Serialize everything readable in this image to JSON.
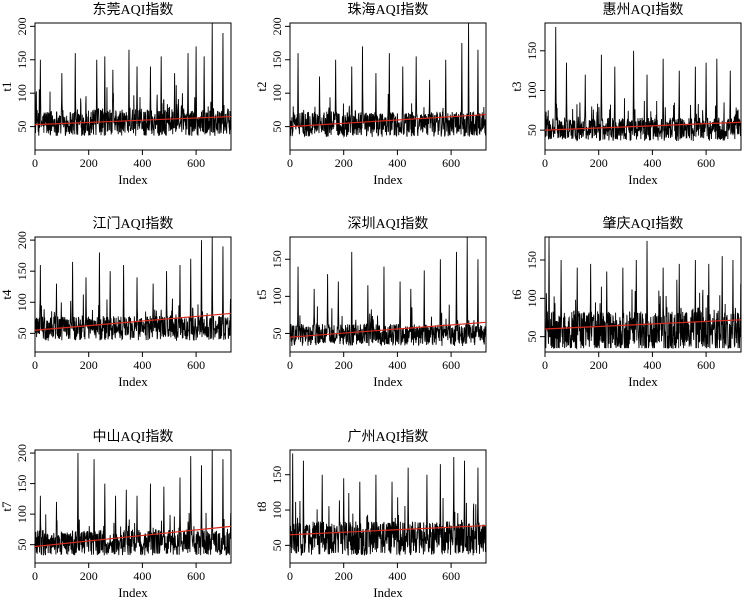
{
  "chart_data": [
    {
      "type": "line",
      "title": "东莞AQI指数",
      "xlabel": "Index",
      "ylabel": "t1",
      "xlim": [
        0,
        730
      ],
      "ylim": [
        15,
        205
      ],
      "xticks": [
        0,
        200,
        400,
        600
      ],
      "yticks": [
        50,
        100,
        150,
        200
      ],
      "series_style": {
        "color": "#000000"
      },
      "trend": {
        "color": "#d62b1f",
        "x": [
          0,
          730
        ],
        "y": [
          53,
          65
        ]
      },
      "profile": {
        "base": 48,
        "spread": 40,
        "peaks": [
          [
            20,
            150
          ],
          [
            100,
            130
          ],
          [
            150,
            160
          ],
          [
            230,
            150
          ],
          [
            260,
            155
          ],
          [
            290,
            135
          ],
          [
            350,
            165
          ],
          [
            380,
            140
          ],
          [
            430,
            140
          ],
          [
            470,
            155
          ],
          [
            520,
            130
          ],
          [
            570,
            160
          ],
          [
            600,
            170
          ],
          [
            630,
            155
          ],
          [
            660,
            205
          ],
          [
            700,
            190
          ]
        ]
      }
    },
    {
      "type": "line",
      "title": "珠海AQI指数",
      "xlabel": "Index",
      "ylabel": "t2",
      "xlim": [
        0,
        730
      ],
      "ylim": [
        15,
        205
      ],
      "xticks": [
        0,
        200,
        400,
        600
      ],
      "yticks": [
        50,
        100,
        150,
        200
      ],
      "series_style": {
        "color": "#000000"
      },
      "trend": {
        "color": "#d62b1f",
        "x": [
          0,
          730
        ],
        "y": [
          50,
          68
        ]
      },
      "profile": {
        "base": 46,
        "spread": 38,
        "peaks": [
          [
            30,
            160
          ],
          [
            110,
            125
          ],
          [
            170,
            150
          ],
          [
            230,
            140
          ],
          [
            270,
            170
          ],
          [
            320,
            130
          ],
          [
            370,
            160
          ],
          [
            420,
            140
          ],
          [
            470,
            155
          ],
          [
            520,
            120
          ],
          [
            580,
            150
          ],
          [
            640,
            175
          ],
          [
            665,
            205
          ],
          [
            700,
            165
          ]
        ]
      }
    },
    {
      "type": "line",
      "title": "惠州AQI指数",
      "xlabel": "Index",
      "ylabel": "t3",
      "xlim": [
        0,
        730
      ],
      "ylim": [
        25,
        185
      ],
      "xticks": [
        0,
        200,
        400,
        600
      ],
      "yticks": [
        50,
        100,
        150
      ],
      "series_style": {
        "color": "#000000"
      },
      "trend": {
        "color": "#d62b1f",
        "x": [
          0,
          730
        ],
        "y": [
          50,
          60
        ]
      },
      "profile": {
        "base": 45,
        "spread": 30,
        "peaks": [
          [
            40,
            180
          ],
          [
            80,
            135
          ],
          [
            150,
            120
          ],
          [
            210,
            145
          ],
          [
            260,
            130
          ],
          [
            330,
            150
          ],
          [
            380,
            120
          ],
          [
            440,
            140
          ],
          [
            500,
            125
          ],
          [
            560,
            130
          ],
          [
            600,
            135
          ],
          [
            640,
            140
          ],
          [
            690,
            125
          ]
        ]
      }
    },
    {
      "type": "line",
      "title": "江门AQI指数",
      "xlabel": "Index",
      "ylabel": "t4",
      "xlim": [
        0,
        730
      ],
      "ylim": [
        20,
        205
      ],
      "xticks": [
        0,
        200,
        400,
        600
      ],
      "yticks": [
        50,
        100,
        150,
        200
      ],
      "series_style": {
        "color": "#000000"
      },
      "trend": {
        "color": "#d62b1f",
        "x": [
          0,
          730
        ],
        "y": [
          55,
          82
        ]
      },
      "profile": {
        "base": 50,
        "spread": 40,
        "peaks": [
          [
            20,
            160
          ],
          [
            80,
            130
          ],
          [
            140,
            165
          ],
          [
            190,
            140
          ],
          [
            240,
            180
          ],
          [
            280,
            150
          ],
          [
            330,
            160
          ],
          [
            380,
            140
          ],
          [
            440,
            130
          ],
          [
            490,
            150
          ],
          [
            540,
            160
          ],
          [
            580,
            170
          ],
          [
            620,
            200
          ],
          [
            660,
            205
          ],
          [
            700,
            190
          ]
        ]
      }
    },
    {
      "type": "line",
      "title": "深圳AQI指数",
      "xlabel": "Index",
      "ylabel": "t5",
      "xlim": [
        0,
        730
      ],
      "ylim": [
        25,
        180
      ],
      "xticks": [
        0,
        200,
        400,
        600
      ],
      "yticks": [
        50,
        100,
        150
      ],
      "series_style": {
        "color": "#000000"
      },
      "trend": {
        "color": "#d62b1f",
        "x": [
          0,
          730
        ],
        "y": [
          45,
          65
        ]
      },
      "profile": {
        "base": 42,
        "spread": 30,
        "peaks": [
          [
            30,
            140
          ],
          [
            90,
            110
          ],
          [
            140,
            130
          ],
          [
            180,
            120
          ],
          [
            230,
            160
          ],
          [
            290,
            115
          ],
          [
            350,
            140
          ],
          [
            410,
            120
          ],
          [
            450,
            110
          ],
          [
            500,
            135
          ],
          [
            560,
            150
          ],
          [
            620,
            160
          ],
          [
            660,
            180
          ],
          [
            700,
            150
          ]
        ]
      }
    },
    {
      "type": "line",
      "title": "肇庆AQI指数",
      "xlabel": "Index",
      "ylabel": "t6",
      "xlim": [
        0,
        730
      ],
      "ylim": [
        30,
        180
      ],
      "xticks": [
        0,
        200,
        400,
        600
      ],
      "yticks": [
        50,
        100,
        150
      ],
      "series_style": {
        "color": "#000000"
      },
      "trend": {
        "color": "#d62b1f",
        "x": [
          0,
          730
        ],
        "y": [
          60,
          72
        ]
      },
      "profile": {
        "base": 45,
        "spread": 55,
        "peaks": [
          [
            15,
            180
          ],
          [
            60,
            150
          ],
          [
            120,
            140
          ],
          [
            170,
            145
          ],
          [
            230,
            135
          ],
          [
            290,
            140
          ],
          [
            340,
            150
          ],
          [
            380,
            175
          ],
          [
            440,
            140
          ],
          [
            500,
            145
          ],
          [
            560,
            150
          ],
          [
            610,
            145
          ],
          [
            660,
            155
          ],
          [
            700,
            150
          ]
        ]
      }
    },
    {
      "type": "line",
      "title": "中山AQI指数",
      "xlabel": "Index",
      "ylabel": "t7",
      "xlim": [
        0,
        730
      ],
      "ylim": [
        20,
        205
      ],
      "xticks": [
        0,
        200,
        400,
        600
      ],
      "yticks": [
        50,
        100,
        150,
        200
      ],
      "series_style": {
        "color": "#000000"
      },
      "trend": {
        "color": "#d62b1f",
        "x": [
          0,
          730
        ],
        "y": [
          47,
          80
        ]
      },
      "profile": {
        "base": 45,
        "spread": 42,
        "peaks": [
          [
            20,
            130
          ],
          [
            80,
            120
          ],
          [
            160,
            200
          ],
          [
            220,
            190
          ],
          [
            260,
            150
          ],
          [
            300,
            130
          ],
          [
            340,
            140
          ],
          [
            380,
            130
          ],
          [
            430,
            150
          ],
          [
            480,
            145
          ],
          [
            540,
            160
          ],
          [
            580,
            195
          ],
          [
            620,
            180
          ],
          [
            660,
            205
          ],
          [
            700,
            190
          ]
        ]
      }
    },
    {
      "type": "line",
      "title": "广州AQI指数",
      "xlabel": "Index",
      "ylabel": "t8",
      "xlim": [
        0,
        730
      ],
      "ylim": [
        25,
        185
      ],
      "xticks": [
        0,
        200,
        400,
        600
      ],
      "yticks": [
        50,
        100,
        150
      ],
      "series_style": {
        "color": "#000000"
      },
      "trend": {
        "color": "#d62b1f",
        "x": [
          0,
          730
        ],
        "y": [
          65,
          78
        ]
      },
      "profile": {
        "base": 50,
        "spread": 48,
        "peaks": [
          [
            10,
            180
          ],
          [
            50,
            170
          ],
          [
            120,
            150
          ],
          [
            200,
            145
          ],
          [
            260,
            140
          ],
          [
            320,
            150
          ],
          [
            380,
            140
          ],
          [
            440,
            160
          ],
          [
            510,
            150
          ],
          [
            560,
            165
          ],
          [
            610,
            175
          ],
          [
            650,
            170
          ],
          [
            700,
            160
          ]
        ]
      }
    }
  ]
}
